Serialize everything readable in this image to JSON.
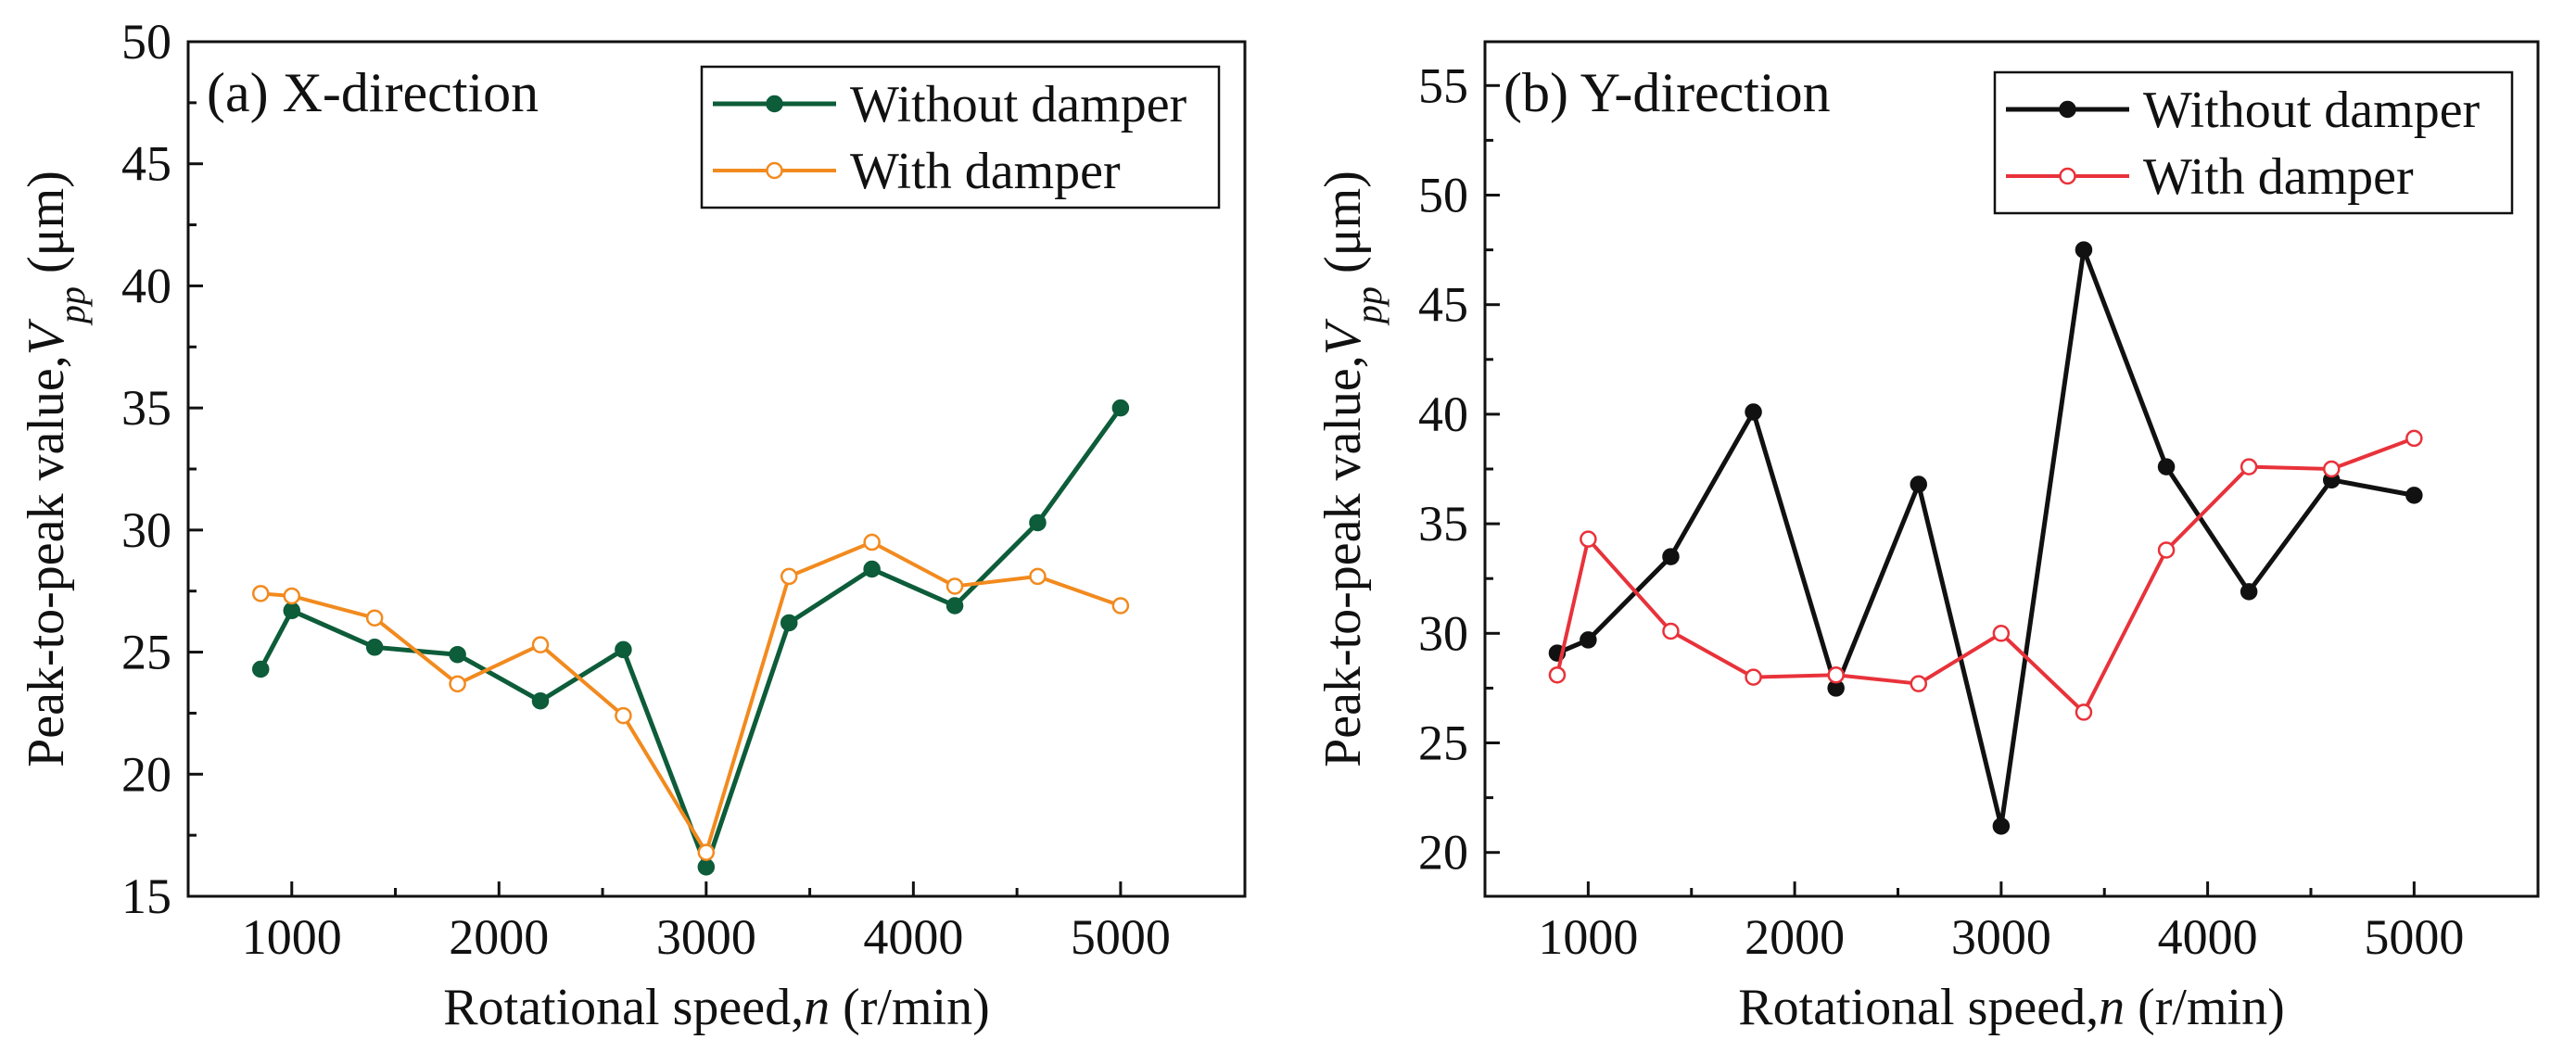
{
  "chart_data": [
    {
      "type": "line",
      "panel": "a",
      "title": "(a) X-direction",
      "xlabel_prefix": "Rotational speed,",
      "xlabel_var": "n",
      "xlabel_suffix": " (r/min)",
      "ylabel_prefix": "Peak-to-peak value,",
      "ylabel_var": "V",
      "ylabel_sub": "pp",
      "ylabel_suffix": " (μm)",
      "xlim": [
        500,
        5600
      ],
      "ylim": [
        15,
        50
      ],
      "xticks": [
        1000,
        2000,
        3000,
        4000,
        5000
      ],
      "yticks": [
        15,
        20,
        25,
        30,
        35,
        40,
        45,
        50
      ],
      "legend_position": "top-right",
      "x": [
        850,
        1000,
        1400,
        1800,
        2200,
        2600,
        3000,
        3400,
        3800,
        4200,
        4600,
        5000
      ],
      "series": [
        {
          "name": "Without damper",
          "color": "#0d5c3a",
          "marker": "filled",
          "values": [
            24.3,
            26.7,
            25.2,
            24.9,
            23.0,
            25.1,
            16.2,
            26.2,
            28.4,
            26.9,
            30.3,
            35.0
          ]
        },
        {
          "name": "With damper",
          "color": "#f28a1e",
          "marker": "hollow",
          "values": [
            27.4,
            27.3,
            26.4,
            23.7,
            25.3,
            22.4,
            16.8,
            28.1,
            29.5,
            27.7,
            28.1,
            26.9
          ]
        }
      ]
    },
    {
      "type": "line",
      "panel": "b",
      "title": "(b) Y-direction",
      "xlabel_prefix": "Rotational speed,",
      "xlabel_var": "n",
      "xlabel_suffix": " (r/min)",
      "ylabel_prefix": "Peak-to-peak value,",
      "ylabel_var": "V",
      "ylabel_sub": "pp",
      "ylabel_suffix": " (μm)",
      "xlim": [
        500,
        5600
      ],
      "ylim": [
        18,
        57
      ],
      "xticks": [
        1000,
        2000,
        3000,
        4000,
        5000
      ],
      "yticks": [
        20,
        25,
        30,
        35,
        40,
        45,
        50,
        55
      ],
      "legend_position": "top-right",
      "x": [
        850,
        1000,
        1400,
        1800,
        2200,
        2600,
        3000,
        3400,
        3800,
        4200,
        4600,
        5000
      ],
      "series": [
        {
          "name": "Without damper",
          "color": "#111111",
          "marker": "filled",
          "values": [
            29.1,
            29.7,
            33.5,
            40.1,
            27.5,
            36.8,
            21.2,
            47.5,
            37.6,
            31.9,
            37.0,
            36.3
          ]
        },
        {
          "name": "With damper",
          "color": "#e8323a",
          "marker": "hollow",
          "values": [
            28.1,
            34.3,
            30.1,
            28.0,
            28.1,
            27.7,
            30.0,
            26.4,
            33.8,
            37.6,
            37.5,
            38.9
          ]
        }
      ]
    }
  ]
}
